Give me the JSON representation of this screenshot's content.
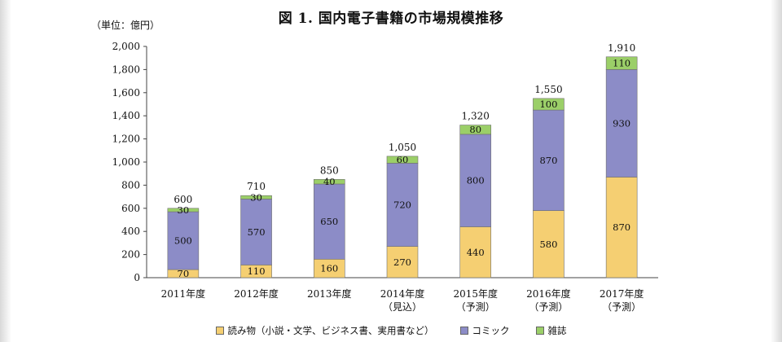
{
  "page": {
    "title": "図 1.  国内電子書籍の市場規模推移",
    "unit": "（単位：億円）"
  },
  "chart_data": {
    "type": "bar",
    "stacked": true,
    "title": "図 1.  国内電子書籍の市場規模推移",
    "ylabel": "（単位：億円）",
    "ylim": [
      0,
      2000
    ],
    "y_ticks": [
      0,
      200,
      400,
      600,
      800,
      1000,
      1200,
      1400,
      1600,
      1800,
      2000
    ],
    "y_tick_labels": [
      "0",
      "200",
      "400",
      "600",
      "800",
      "1,000",
      "1,200",
      "1,400",
      "1,600",
      "1,800",
      "2,000"
    ],
    "grid": false,
    "legend_position": "bottom",
    "categories": [
      [
        "2011年度"
      ],
      [
        "2012年度"
      ],
      [
        "2013年度"
      ],
      [
        "2014年度",
        "（見込）"
      ],
      [
        "2015年度",
        "（予測）"
      ],
      [
        "2016年度",
        "（予測）"
      ],
      [
        "2017年度",
        "（予測）"
      ]
    ],
    "totals": [
      "600",
      "710",
      "850",
      "1,050",
      "1,320",
      "1,550",
      "1,910"
    ],
    "series": [
      {
        "name": "読み物（小説・文学、ビジネス書、実用書など）",
        "color": "#f5cf72",
        "values": [
          70,
          110,
          160,
          270,
          440,
          580,
          870
        ]
      },
      {
        "name": "コミック",
        "color": "#8c8cc7",
        "values": [
          500,
          570,
          650,
          720,
          800,
          870,
          930
        ]
      },
      {
        "name": "雑誌",
        "color": "#9bcf68",
        "values": [
          30,
          30,
          40,
          60,
          80,
          100,
          110
        ]
      }
    ]
  }
}
